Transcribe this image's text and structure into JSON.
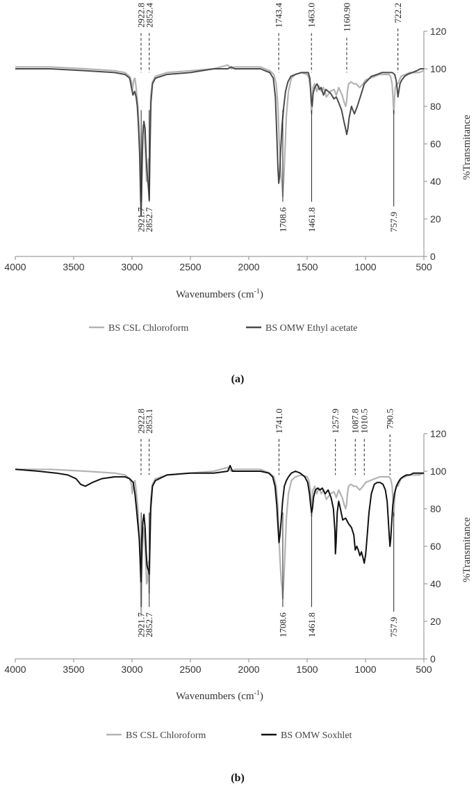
{
  "chart_data": [
    {
      "type": "line",
      "panel_label": "(a)",
      "xlabel": "Wavenumbers (cm",
      "xlabel_sup": "-1",
      "xlabel_close": ")",
      "ylabel": "%Transmitance",
      "xlim": [
        4000,
        500
      ],
      "ylim": [
        0,
        120
      ],
      "xticks": [
        4000,
        3500,
        3000,
        2500,
        2000,
        1500,
        1000,
        500
      ],
      "yticks": [
        0,
        20,
        40,
        60,
        80,
        100,
        120
      ],
      "legend_position": "bottom",
      "series": [
        {
          "name": "BS CSL Chloroform",
          "color": "#b3b3b3",
          "x": [
            4000,
            3700,
            3400,
            3150,
            3060,
            3020,
            3005,
            2998,
            2985,
            2975,
            2965,
            2950,
            2935,
            2926,
            2921.7,
            2914,
            2905,
            2895,
            2885,
            2875,
            2866,
            2858,
            2852.7,
            2847,
            2840,
            2825,
            2800,
            2700,
            2500,
            2300,
            2180,
            2150,
            2120,
            2000,
            1900,
            1820,
            1785,
            1765,
            1750,
            1740,
            1730,
            1722,
            1715,
            1708.6,
            1700,
            1690,
            1678,
            1660,
            1635,
            1600,
            1550,
            1500,
            1485,
            1472,
            1465,
            1461.8,
            1457,
            1450,
            1435,
            1418,
            1400,
            1378,
            1360,
            1335,
            1300,
            1270,
            1250,
            1230,
            1200,
            1182,
            1170,
            1163,
            1155,
            1145,
            1125,
            1100,
            1080,
            1050,
            1020,
            1000,
            960,
            920,
            880,
            850,
            820,
            800,
            785,
            772,
            764,
            757.9,
            752,
            745,
            735,
            722,
            710,
            695,
            660,
            620,
            580,
            540,
            500
          ],
          "y": [
            101,
            101,
            100,
            99,
            98,
            96,
            93,
            88,
            94,
            95,
            90,
            80,
            62,
            42,
            23,
            52,
            70,
            68,
            55,
            40,
            42,
            52,
            35,
            62,
            85,
            93,
            96,
            98,
            99,
            100,
            102,
            100,
            101,
            101,
            101,
            99,
            97,
            92,
            80,
            62,
            50,
            42,
            38,
            32,
            42,
            56,
            75,
            88,
            95,
            97,
            98,
            97,
            95,
            90,
            80,
            76,
            82,
            90,
            92,
            88,
            91,
            88,
            90,
            85,
            88,
            89,
            86,
            90,
            86,
            82,
            80,
            82,
            88,
            92,
            93,
            92,
            92,
            90,
            92,
            94,
            95,
            96,
            97,
            97,
            97,
            97,
            96,
            92,
            84,
            76,
            84,
            90,
            92,
            92,
            94,
            96,
            97,
            98,
            98,
            98,
            99
          ]
        },
        {
          "name": "BS OMW Ethyl acetate",
          "color": "#4a4a4a",
          "x": [
            4000,
            3700,
            3400,
            3150,
            3060,
            3020,
            3005,
            2992,
            2978,
            2965,
            2955,
            2945,
            2935,
            2928,
            2922.8,
            2916,
            2908,
            2898,
            2888,
            2880,
            2872,
            2864,
            2858,
            2852.4,
            2846,
            2838,
            2825,
            2800,
            2700,
            2500,
            2300,
            2180,
            2150,
            2120,
            2000,
            1900,
            1820,
            1790,
            1772,
            1760,
            1750,
            1743.4,
            1737,
            1728,
            1715,
            1700,
            1685,
            1665,
            1640,
            1600,
            1550,
            1510,
            1490,
            1477,
            1469,
            1463,
            1457,
            1448,
            1435,
            1415,
            1395,
            1380,
            1360,
            1340,
            1300,
            1270,
            1250,
            1230,
            1205,
            1185,
            1170,
            1160.9,
            1152,
            1140,
            1120,
            1095,
            1070,
            1050,
            1030,
            1010,
            980,
            950,
            900,
            860,
            820,
            790,
            770,
            750,
            738,
            730,
            722.2,
            715,
            705,
            690,
            665,
            640,
            600,
            560,
            530,
            500
          ],
          "y": [
            100,
            100,
            99,
            98,
            97,
            95,
            90,
            86,
            88,
            85,
            80,
            70,
            55,
            35,
            22,
            40,
            65,
            72,
            68,
            55,
            45,
            40,
            35,
            30,
            58,
            82,
            92,
            95,
            97,
            98,
            100,
            100,
            101,
            100,
            100,
            100,
            98,
            95,
            85,
            65,
            47,
            39,
            42,
            55,
            70,
            80,
            88,
            93,
            96,
            97,
            98,
            98,
            98,
            95,
            88,
            82,
            80,
            87,
            90,
            92,
            89,
            90,
            86,
            89,
            87,
            84,
            85,
            82,
            78,
            72,
            68,
            65,
            68,
            74,
            80,
            76,
            80,
            84,
            88,
            92,
            94,
            96,
            97,
            98,
            98,
            98,
            98,
            97,
            94,
            90,
            85,
            88,
            92,
            94,
            96,
            97,
            98,
            99,
            100,
            100
          ]
        }
      ],
      "annotations": [
        {
          "label": "2922.8",
          "x": 2922.8,
          "side": "top"
        },
        {
          "label": "2852.4",
          "x": 2852.4,
          "side": "top"
        },
        {
          "label": "1743.4",
          "x": 1743.4,
          "side": "top"
        },
        {
          "label": "1463.0",
          "x": 1463.0,
          "side": "top"
        },
        {
          "label": "1160.90",
          "x": 1160.9,
          "side": "top"
        },
        {
          "label": "722.2",
          "x": 722.2,
          "side": "top"
        },
        {
          "label": "2921.7",
          "x": 2921.7,
          "side": "bottom"
        },
        {
          "label": "2852.7",
          "x": 2852.7,
          "side": "bottom"
        },
        {
          "label": "1708.6",
          "x": 1708.6,
          "side": "bottom"
        },
        {
          "label": "1461.8",
          "x": 1461.8,
          "side": "bottom"
        },
        {
          "label": "757.9",
          "x": 757.9,
          "side": "bottom"
        }
      ]
    },
    {
      "type": "line",
      "panel_label": "(b)",
      "xlabel": "Wavenumbers (cm",
      "xlabel_sup": "-1",
      "xlabel_close": ")",
      "ylabel": "%Transmitance",
      "xlim": [
        4000,
        500
      ],
      "ylim": [
        0,
        120
      ],
      "xticks": [
        4000,
        3500,
        3000,
        2500,
        2000,
        1500,
        1000,
        500
      ],
      "yticks": [
        0,
        20,
        40,
        60,
        80,
        100,
        120
      ],
      "legend_position": "bottom",
      "series": [
        {
          "name": "BS CSL Chloroform",
          "color": "#b3b3b3",
          "x": [
            4000,
            3700,
            3400,
            3150,
            3060,
            3020,
            3005,
            2998,
            2985,
            2975,
            2965,
            2950,
            2935,
            2926,
            2921.7,
            2914,
            2905,
            2895,
            2885,
            2875,
            2866,
            2858,
            2852.7,
            2847,
            2840,
            2825,
            2800,
            2700,
            2500,
            2300,
            2180,
            2150,
            2120,
            2000,
            1900,
            1820,
            1785,
            1765,
            1750,
            1740,
            1730,
            1722,
            1715,
            1708.6,
            1700,
            1690,
            1678,
            1660,
            1635,
            1600,
            1550,
            1500,
            1485,
            1472,
            1465,
            1461.8,
            1457,
            1450,
            1435,
            1418,
            1400,
            1378,
            1360,
            1335,
            1300,
            1270,
            1250,
            1230,
            1200,
            1182,
            1170,
            1163,
            1155,
            1145,
            1125,
            1100,
            1080,
            1050,
            1020,
            1000,
            960,
            920,
            880,
            850,
            820,
            800,
            785,
            772,
            764,
            757.9,
            752,
            745,
            735,
            722,
            710,
            695,
            660,
            620,
            580,
            540,
            500
          ],
          "y": [
            101,
            101,
            100,
            99,
            98,
            96,
            93,
            88,
            94,
            95,
            90,
            80,
            62,
            42,
            23,
            52,
            70,
            68,
            55,
            40,
            42,
            52,
            35,
            62,
            85,
            93,
            96,
            98,
            99,
            100,
            102,
            100,
            101,
            101,
            101,
            99,
            97,
            92,
            80,
            62,
            50,
            42,
            38,
            32,
            42,
            56,
            75,
            88,
            95,
            97,
            98,
            97,
            95,
            90,
            80,
            76,
            82,
            90,
            92,
            88,
            91,
            88,
            90,
            85,
            88,
            89,
            86,
            90,
            86,
            82,
            80,
            82,
            88,
            92,
            93,
            92,
            92,
            90,
            92,
            94,
            95,
            96,
            97,
            97,
            97,
            97,
            96,
            92,
            84,
            76,
            84,
            90,
            92,
            92,
            94,
            96,
            97,
            98,
            98,
            98,
            99
          ]
        },
        {
          "name": "BS OMW Soxhlet",
          "color": "#111111",
          "x": [
            4000,
            3800,
            3650,
            3550,
            3480,
            3440,
            3400,
            3340,
            3260,
            3150,
            3060,
            3020,
            2990,
            2975,
            2962,
            2950,
            2938,
            2930,
            2922.8,
            2916,
            2908,
            2898,
            2888,
            2880,
            2872,
            2865,
            2858,
            2853.1,
            2847,
            2840,
            2825,
            2800,
            2700,
            2500,
            2300,
            2180,
            2160,
            2140,
            2000,
            1900,
            1830,
            1795,
            1775,
            1760,
            1750,
            1741,
            1733,
            1722,
            1710,
            1695,
            1678,
            1660,
            1635,
            1600,
            1560,
            1520,
            1495,
            1480,
            1470,
            1462,
            1455,
            1445,
            1430,
            1410,
            1390,
            1370,
            1345,
            1320,
            1295,
            1275,
            1262,
            1257.9,
            1252,
            1242,
            1230,
            1215,
            1195,
            1170,
            1145,
            1120,
            1100,
            1087.8,
            1075,
            1062,
            1048,
            1035,
            1022,
            1010.5,
            998,
            985,
            970,
            950,
            925,
            900,
            875,
            850,
            830,
            815,
            805,
            797,
            790.5,
            784,
            776,
            766,
            752,
            735,
            720,
            700,
            680,
            650,
            620,
            590,
            560,
            530,
            500
          ],
          "y": [
            101,
            100,
            99,
            98,
            96,
            93,
            92,
            94,
            96,
            97,
            97,
            96,
            94,
            88,
            80,
            72,
            64,
            52,
            41,
            60,
            73,
            77,
            70,
            58,
            50,
            48,
            47,
            45,
            60,
            80,
            92,
            95,
            98,
            99,
            99,
            100,
            103,
            100,
            100,
            100,
            99,
            97,
            92,
            82,
            71,
            62,
            66,
            74,
            84,
            92,
            95,
            97,
            99,
            100,
            99,
            97,
            94,
            88,
            82,
            78,
            80,
            86,
            90,
            91,
            90,
            91,
            88,
            90,
            86,
            80,
            68,
            56,
            62,
            78,
            84,
            80,
            74,
            75,
            72,
            70,
            66,
            58,
            60,
            58,
            55,
            57,
            54,
            51,
            56,
            66,
            78,
            88,
            93,
            94,
            94,
            93,
            90,
            84,
            74,
            66,
            60,
            64,
            72,
            82,
            88,
            92,
            94,
            96,
            97,
            98,
            98,
            99,
            99,
            99,
            99
          ]
        }
      ],
      "annotations": [
        {
          "label": "2922.8",
          "x": 2922.8,
          "side": "top"
        },
        {
          "label": "2853.1",
          "x": 2853.1,
          "side": "top"
        },
        {
          "label": "1741.0",
          "x": 1741.0,
          "side": "top"
        },
        {
          "label": "1257.9",
          "x": 1257.9,
          "side": "top"
        },
        {
          "label": "1087.8",
          "x": 1087.8,
          "side": "top"
        },
        {
          "label": "1010.5",
          "x": 1010.5,
          "side": "top"
        },
        {
          "label": "790.5",
          "x": 790.5,
          "side": "top"
        },
        {
          "label": "2921.7",
          "x": 2921.7,
          "side": "bottom"
        },
        {
          "label": "2852.7",
          "x": 2852.7,
          "side": "bottom"
        },
        {
          "label": "1708.6",
          "x": 1708.6,
          "side": "bottom"
        },
        {
          "label": "1461.8",
          "x": 1461.8,
          "side": "bottom"
        },
        {
          "label": "757.9",
          "x": 757.9,
          "side": "bottom"
        }
      ]
    }
  ]
}
